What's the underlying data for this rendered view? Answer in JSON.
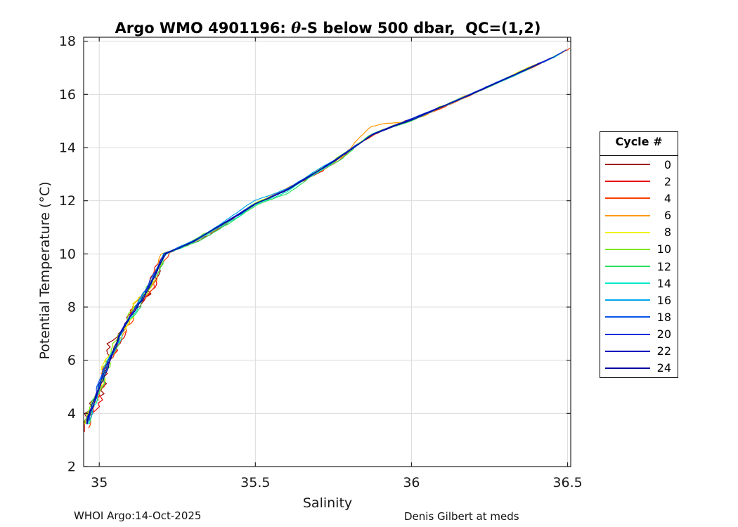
{
  "title": {
    "prefix": "Argo WMO 4901196: ",
    "theta": "θ",
    "suffix": "-S below 500 dbar,  QC=(1,2)"
  },
  "footer": {
    "left": "WHOI Argo:14-Oct-2025",
    "right": "Denis Gilbert at meds"
  },
  "legend": {
    "title": "Cycle #"
  },
  "chart_data": {
    "type": "line",
    "title": "Argo WMO 4901196: θ-S below 500 dbar,  QC=(1,2)",
    "xlabel": "Salinity",
    "ylabel": "Potential Temperature (°C)",
    "xlim": [
      34.95,
      36.51
    ],
    "ylim": [
      2,
      18.15
    ],
    "xticks": [
      35,
      35.5,
      36,
      36.5
    ],
    "yticks": [
      2,
      4,
      6,
      8,
      10,
      12,
      14,
      16,
      18
    ],
    "grid": true,
    "grid_color": "#dcdcdc",
    "axis_color": "#262626",
    "legend_position": "right-outside",
    "legend_title": "Cycle #",
    "centerline_comment": "shared theta-S relationship all cycles follow; points are [salinity, potential_temperature_C]",
    "centerline": [
      [
        34.953,
        3.3
      ],
      [
        34.962,
        3.6
      ],
      [
        34.972,
        4.0
      ],
      [
        34.986,
        4.5
      ],
      [
        35.0,
        5.0
      ],
      [
        35.015,
        5.5
      ],
      [
        35.03,
        6.0
      ],
      [
        35.05,
        6.5
      ],
      [
        35.07,
        7.0
      ],
      [
        35.095,
        7.5
      ],
      [
        35.12,
        8.0
      ],
      [
        35.145,
        8.5
      ],
      [
        35.168,
        9.0
      ],
      [
        35.19,
        9.5
      ],
      [
        35.21,
        10.0
      ],
      [
        35.252,
        10.2
      ],
      [
        35.3,
        10.45
      ],
      [
        35.35,
        10.8
      ],
      [
        35.4,
        11.15
      ],
      [
        35.45,
        11.5
      ],
      [
        35.5,
        11.9
      ],
      [
        35.55,
        12.15
      ],
      [
        35.6,
        12.4
      ],
      [
        35.65,
        12.75
      ],
      [
        35.7,
        13.1
      ],
      [
        35.755,
        13.5
      ],
      [
        35.815,
        14.0
      ],
      [
        35.875,
        14.5
      ],
      [
        35.94,
        14.8
      ],
      [
        36.0,
        15.05
      ],
      [
        36.09,
        15.5
      ],
      [
        36.19,
        16.0
      ],
      [
        36.285,
        16.5
      ],
      [
        36.38,
        17.0
      ],
      [
        36.455,
        17.4
      ],
      [
        36.505,
        17.75
      ]
    ],
    "series": [
      {
        "label": "0",
        "color": "#A00000",
        "theta_min": 3.3,
        "theta_max": 9.6
      },
      {
        "label": "2",
        "color": "#E60000",
        "theta_min": 3.3
      },
      {
        "label": "4",
        "color": "#FF3C00",
        "theta_min": 3.4
      },
      {
        "label": "6",
        "color": "#FF9A00",
        "theta_min": 3.5,
        "bump": [
          13.95,
          14.95,
          0.27
        ]
      },
      {
        "label": "8",
        "color": "#F2F200",
        "theta_min": 3.5
      },
      {
        "label": "10",
        "color": "#7DE800",
        "theta_min": 3.6
      },
      {
        "label": "12",
        "color": "#2CDE5F",
        "theta_min": 3.6,
        "bias_t": -0.09
      },
      {
        "label": "14",
        "color": "#00EAC6",
        "theta_min": 3.6,
        "bias_t": -0.04
      },
      {
        "label": "16",
        "color": "#00A6EC",
        "theta_min": 3.7,
        "bias_t": 0.09
      },
      {
        "label": "18",
        "color": "#0A52E8",
        "theta_min": 3.7
      },
      {
        "label": "20",
        "color": "#0A2CD8",
        "theta_min": 3.6
      },
      {
        "label": "22",
        "color": "#0712BC",
        "theta_min": 3.5
      },
      {
        "label": "24",
        "color": "#04089E",
        "theta_min": 3.5
      }
    ]
  }
}
